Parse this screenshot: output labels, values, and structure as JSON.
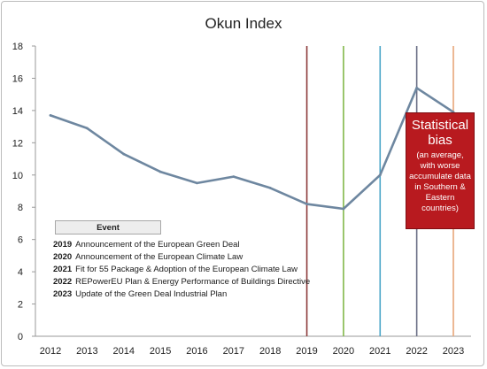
{
  "chart_data": {
    "type": "line",
    "title": "Okun Index",
    "xlabel": "",
    "ylabel": "",
    "x": [
      "2012",
      "2013",
      "2014",
      "2015",
      "2016",
      "2017",
      "2018",
      "2019",
      "2020",
      "2021",
      "2022",
      "2023"
    ],
    "series": [
      {
        "values": [
          13.7,
          12.9,
          11.3,
          10.2,
          9.5,
          9.9,
          9.2,
          8.2,
          7.9,
          10.0,
          15.4,
          13.9
        ]
      }
    ],
    "ylim": [
      0,
      18
    ],
    "yticks": [
      0,
      2,
      4,
      6,
      8,
      10,
      12,
      14,
      16,
      18
    ],
    "grid": false,
    "series_color": "#6e87a0",
    "event_lines": [
      {
        "year": "2019",
        "color": "#8c3a3a"
      },
      {
        "year": "2020",
        "color": "#82b84a"
      },
      {
        "year": "2021",
        "color": "#4aa6c8"
      },
      {
        "year": "2022",
        "color": "#6a6e86"
      },
      {
        "year": "2023",
        "color": "#e8a77a"
      }
    ],
    "legend": {
      "title": "Event",
      "placement": "bottom-left",
      "entries": [
        {
          "year": "2019",
          "text": "Announcement of the European Green Deal"
        },
        {
          "year": "2020",
          "text": "Announcement of the European Climate Law"
        },
        {
          "year": "2021",
          "text": "Fit for 55 Package & Adoption of the European Climate Law"
        },
        {
          "year": "2022",
          "text": "REPowerEU Plan & Energy Performance of Buildings Directive"
        },
        {
          "year": "2023",
          "text": "Update of the Green Deal Industrial Plan"
        }
      ]
    },
    "annotation": {
      "title_line1": "Statistical",
      "title_line2": "bias",
      "note": "(an average, with worse accumulate data in Southern & Eastern countries)",
      "color": "#b81a1f",
      "placement": "right"
    }
  }
}
